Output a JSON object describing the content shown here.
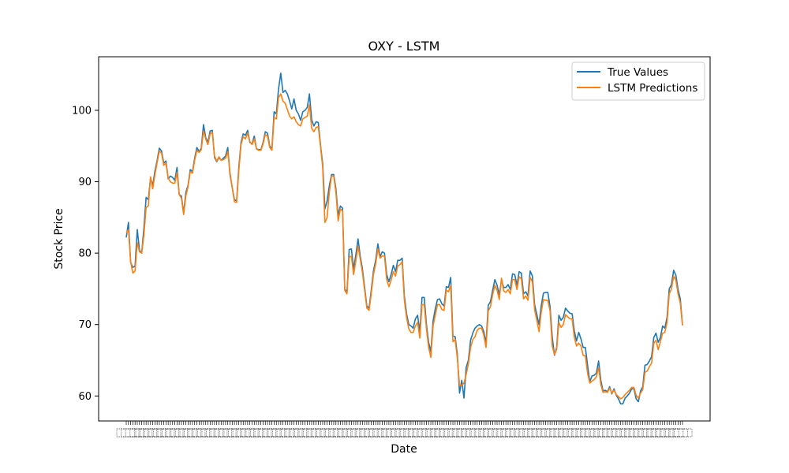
{
  "chart_data": {
    "type": "line",
    "title": "OXY - LSTM",
    "xlabel": "Date",
    "ylabel": "Stock Price",
    "ylim": [
      56.5,
      107.5
    ],
    "y_ticks": [
      60,
      70,
      80,
      90,
      100
    ],
    "grid": false,
    "legend_position": "top-right",
    "x_tick_labels": "illegible overlapping date strings",
    "series": [
      {
        "name": "True Values",
        "color": "#1f77b4",
        "values": [
          82.2,
          84.3,
          78.7,
          78.0,
          78.2,
          83.3,
          80.4,
          80.0,
          83.5,
          87.8,
          87.5,
          90.5,
          89.5,
          91.5,
          93.0,
          94.7,
          94.3,
          92.6,
          92.9,
          90.4,
          90.8,
          90.6,
          90.2,
          92.0,
          88.2,
          88.0,
          85.6,
          88.5,
          89.5,
          91.7,
          91.4,
          93.3,
          94.8,
          94.2,
          94.7,
          98.0,
          96.2,
          95.5,
          97.1,
          97.2,
          93.4,
          92.8,
          93.4,
          93.0,
          93.3,
          93.6,
          94.8,
          91.0,
          89.2,
          87.5,
          87.3,
          92.0,
          95.5,
          96.7,
          96.5,
          97.2,
          95.5,
          95.3,
          96.4,
          94.6,
          94.5,
          94.5,
          95.5,
          97.0,
          96.8,
          95.0,
          94.6,
          99.8,
          99.5,
          103.0,
          105.2,
          102.5,
          102.8,
          102.3,
          101.3,
          100.2,
          101.6,
          100.0,
          99.5,
          98.6,
          99.8,
          100.0,
          100.4,
          102.3,
          98.7,
          97.8,
          98.4,
          98.3,
          95.2,
          92.5,
          86.2,
          87.3,
          89.4,
          91.0,
          91.0,
          89.0,
          85.3,
          86.6,
          86.3,
          75.0,
          74.5,
          80.5,
          80.6,
          77.8,
          79.7,
          82.0,
          79.6,
          77.8,
          75.2,
          72.6,
          72.3,
          74.8,
          77.5,
          79.0,
          81.3,
          79.5,
          80.2,
          80.0,
          77.0,
          76.0,
          77.0,
          78.3,
          77.4,
          79.0,
          79.0,
          79.3,
          74.0,
          71.5,
          70.0,
          69.8,
          69.5,
          70.8,
          71.3,
          69.0,
          73.8,
          73.8,
          70.0,
          67.5,
          66.2,
          70.5,
          72.2,
          73.5,
          73.6,
          72.9,
          72.6,
          75.3,
          75.2,
          76.6,
          68.4,
          68.3,
          65.8,
          60.4,
          62.2,
          59.7,
          64.0,
          65.0,
          67.8,
          68.8,
          69.5,
          69.8,
          70.0,
          69.8,
          69.0,
          67.4,
          72.7,
          73.2,
          74.8,
          76.3,
          75.5,
          74.2,
          76.2,
          75.2,
          75.2,
          75.6,
          74.9,
          77.1,
          77.0,
          75.5,
          77.4,
          77.2,
          74.3,
          74.6,
          74.0,
          77.5,
          76.8,
          72.8,
          71.4,
          70.0,
          72.6,
          74.4,
          74.5,
          74.5,
          72.5,
          68.2,
          65.7,
          66.8,
          71.3,
          70.6,
          71.0,
          72.3,
          71.9,
          71.6,
          71.5,
          69.1,
          67.7,
          68.9,
          68.0,
          66.8,
          66.8,
          64.3,
          62.0,
          62.8,
          62.9,
          63.2,
          64.9,
          62.2,
          60.7,
          60.8,
          60.6,
          61.3,
          60.3,
          61.0,
          60.1,
          59.6,
          58.9,
          58.9,
          59.7,
          60.0,
          60.4,
          61.0,
          61.0,
          59.6,
          59.2,
          60.7,
          61.3,
          64.3,
          64.4,
          64.9,
          65.5,
          68.2,
          68.8,
          67.5,
          68.2,
          69.8,
          69.5,
          71.0,
          75.0,
          75.6,
          77.6,
          76.9,
          74.9,
          73.6,
          69.9
        ]
      },
      {
        "name": "LSTM Predictions",
        "color": "#ff7f0e",
        "values": [
          82.8,
          83.3,
          78.8,
          77.2,
          77.5,
          81.5,
          80.2,
          80.0,
          82.5,
          86.4,
          86.6,
          90.7,
          89.0,
          91.0,
          92.7,
          94.3,
          94.0,
          92.3,
          92.6,
          90.5,
          90.0,
          89.8,
          89.8,
          91.3,
          88.2,
          87.7,
          85.4,
          88.0,
          89.3,
          91.4,
          91.2,
          93.0,
          94.4,
          94.1,
          94.5,
          97.1,
          96.0,
          95.2,
          96.7,
          96.9,
          93.6,
          92.9,
          93.5,
          93.0,
          93.1,
          93.3,
          94.2,
          91.3,
          89.2,
          87.2,
          87.1,
          91.5,
          95.2,
          96.3,
          96.0,
          96.8,
          95.6,
          95.2,
          96.0,
          94.6,
          94.4,
          94.4,
          95.3,
          96.6,
          96.4,
          94.8,
          94.4,
          99.0,
          98.8,
          101.8,
          102.3,
          101.3,
          101.0,
          100.1,
          99.2,
          98.8,
          99.1,
          98.4,
          98.0,
          97.8,
          98.8,
          99.0,
          99.2,
          100.8,
          97.5,
          97.0,
          97.6,
          97.7,
          95.0,
          92.0,
          84.3,
          85.0,
          88.5,
          90.8,
          90.8,
          88.5,
          84.5,
          86.2,
          85.9,
          74.8,
          74.3,
          79.4,
          79.6,
          77.0,
          78.9,
          81.0,
          79.2,
          77.3,
          74.8,
          72.3,
          72.0,
          74.3,
          77.0,
          78.5,
          80.6,
          79.3,
          79.6,
          79.6,
          76.3,
          75.3,
          76.2,
          77.4,
          76.8,
          78.2,
          78.4,
          78.8,
          73.4,
          71.0,
          69.4,
          68.9,
          68.9,
          69.8,
          70.3,
          68.1,
          72.8,
          72.8,
          69.4,
          66.8,
          65.4,
          69.8,
          71.3,
          72.8,
          72.8,
          72.1,
          72.0,
          74.8,
          74.6,
          75.5,
          67.6,
          67.9,
          65.3,
          61.5,
          61.5,
          61.8,
          63.0,
          64.5,
          66.8,
          67.9,
          68.3,
          69.2,
          69.5,
          69.5,
          68.5,
          66.8,
          71.9,
          72.5,
          74.2,
          75.5,
          74.8,
          73.5,
          76.5,
          74.7,
          74.5,
          74.9,
          74.3,
          76.3,
          76.3,
          74.9,
          76.7,
          76.4,
          73.6,
          74.0,
          73.4,
          76.6,
          76.0,
          72.1,
          70.6,
          69.0,
          71.7,
          73.5,
          73.4,
          73.4,
          71.9,
          67.0,
          65.8,
          66.5,
          70.3,
          69.6,
          70.0,
          71.4,
          71.1,
          70.8,
          70.8,
          68.2,
          67.0,
          67.4,
          67.0,
          65.7,
          65.6,
          63.2,
          61.8,
          62.1,
          62.3,
          62.7,
          64.0,
          61.6,
          60.5,
          60.6,
          60.5,
          61.1,
          60.4,
          60.8,
          60.2,
          59.9,
          59.6,
          59.8,
          60.2,
          60.5,
          60.8,
          61.2,
          61.2,
          60.1,
          59.7,
          60.4,
          60.9,
          63.3,
          63.5,
          64.1,
          64.6,
          67.4,
          67.8,
          66.5,
          67.6,
          68.8,
          68.9,
          70.3,
          74.3,
          75.0,
          76.8,
          76.2,
          74.3,
          73.0,
          69.9
        ]
      }
    ]
  }
}
